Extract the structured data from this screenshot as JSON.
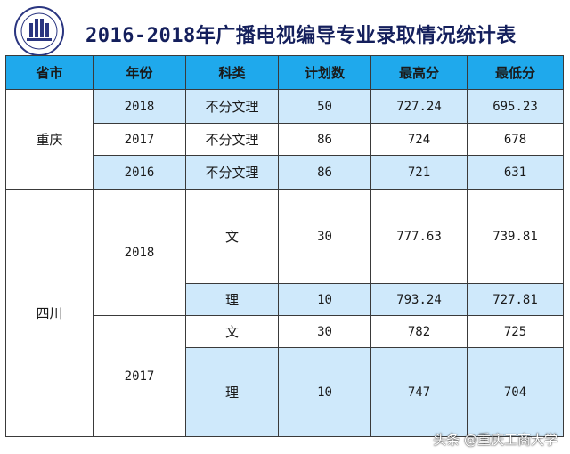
{
  "title": "2016-2018年广播电视编导专业录取情况统计表",
  "headers": [
    "省市",
    "年份",
    "科类",
    "计划数",
    "最高分",
    "最低分"
  ],
  "chongqing": {
    "province": "重庆",
    "rows": [
      {
        "year": "2018",
        "category": "不分文理",
        "plan": "50",
        "max": "727.24",
        "min": "695.23"
      },
      {
        "year": "2017",
        "category": "不分文理",
        "plan": "86",
        "max": "724",
        "min": "678"
      },
      {
        "year": "2016",
        "category": "不分文理",
        "plan": "86",
        "max": "721",
        "min": "631"
      }
    ]
  },
  "sichuan": {
    "province": "四川",
    "year_2018": "2018",
    "year_2017": "2017",
    "rows": [
      {
        "category": "文",
        "plan": "30",
        "max": "777.63",
        "min": "739.81"
      },
      {
        "category": "理",
        "plan": "10",
        "max": "793.24",
        "min": "727.81"
      },
      {
        "category": "文",
        "plan": "30",
        "max": "782",
        "min": "725"
      },
      {
        "category": "理",
        "plan": "10",
        "max": "747",
        "min": "704"
      }
    ]
  },
  "watermark": "头条 @重庆工商大学",
  "colors": {
    "header_bg": "#1fa9ec",
    "stripe_bg": "#cfe9fb",
    "title_color": "#141f5c"
  }
}
